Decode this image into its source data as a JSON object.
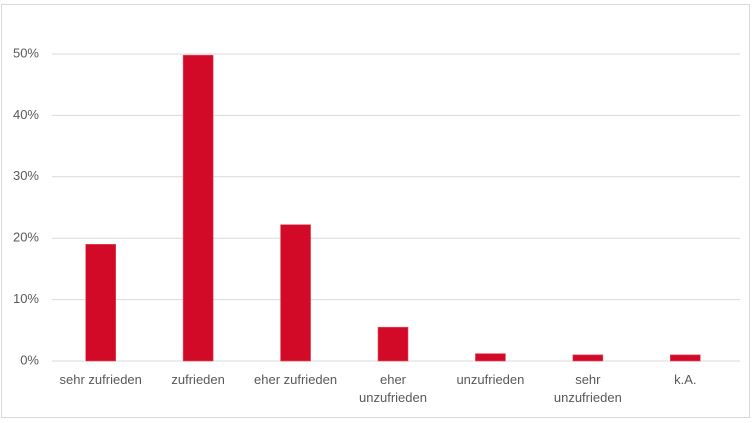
{
  "chart_data": {
    "type": "bar",
    "categories": [
      "sehr zufrieden",
      "zufrieden",
      "eher zufrieden",
      "eher\nunzufrieden",
      "unzufrieden",
      "sehr\nunzufrieden",
      "k.A."
    ],
    "values": [
      19,
      49.8,
      22.2,
      5.5,
      1.2,
      1,
      1
    ],
    "color": "#d20a27",
    "ylim": [
      0,
      50
    ],
    "yticks": [
      {
        "value": 0,
        "label": "0%"
      },
      {
        "value": 10,
        "label": "10%"
      },
      {
        "value": 20,
        "label": "20%"
      },
      {
        "value": 30,
        "label": "30%"
      },
      {
        "value": 40,
        "label": "40%"
      },
      {
        "value": 50,
        "label": "50%"
      }
    ],
    "grid": true
  }
}
